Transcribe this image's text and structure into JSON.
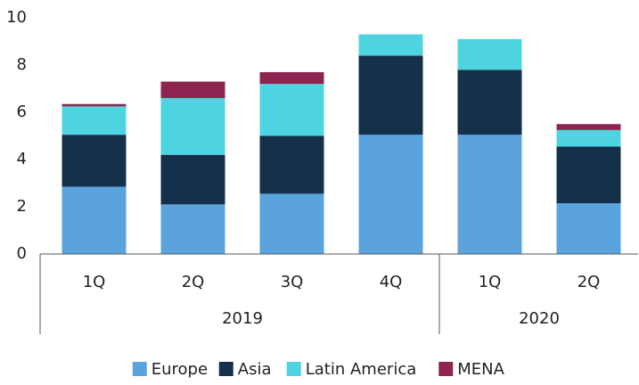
{
  "chart_data": {
    "type": "stacked_bar",
    "categories": [
      "1Q",
      "2Q",
      "3Q",
      "4Q",
      "1Q",
      "2Q"
    ],
    "category_groups": [
      "2019",
      "2019",
      "2019",
      "2019",
      "2020",
      "2020"
    ],
    "series": [
      {
        "name": "Europe",
        "color": "#5ba3dc",
        "values": [
          2.85,
          2.1,
          2.55,
          5.05,
          5.05,
          2.15
        ]
      },
      {
        "name": "Asia",
        "color": "#14304a",
        "values": [
          2.2,
          2.1,
          2.45,
          3.35,
          2.75,
          2.4
        ]
      },
      {
        "name": "Latin America",
        "color": "#4dd4e0",
        "values": [
          1.2,
          2.4,
          2.2,
          0.9,
          1.3,
          0.7
        ]
      },
      {
        "name": "MENA",
        "color": "#8e2450",
        "values": [
          0.1,
          0.7,
          0.5,
          0,
          0,
          0.25
        ]
      }
    ],
    "ylim": [
      0,
      10
    ],
    "yticks": [
      0,
      2,
      4,
      6,
      8,
      10
    ],
    "grid": false,
    "legend": "bottom"
  }
}
